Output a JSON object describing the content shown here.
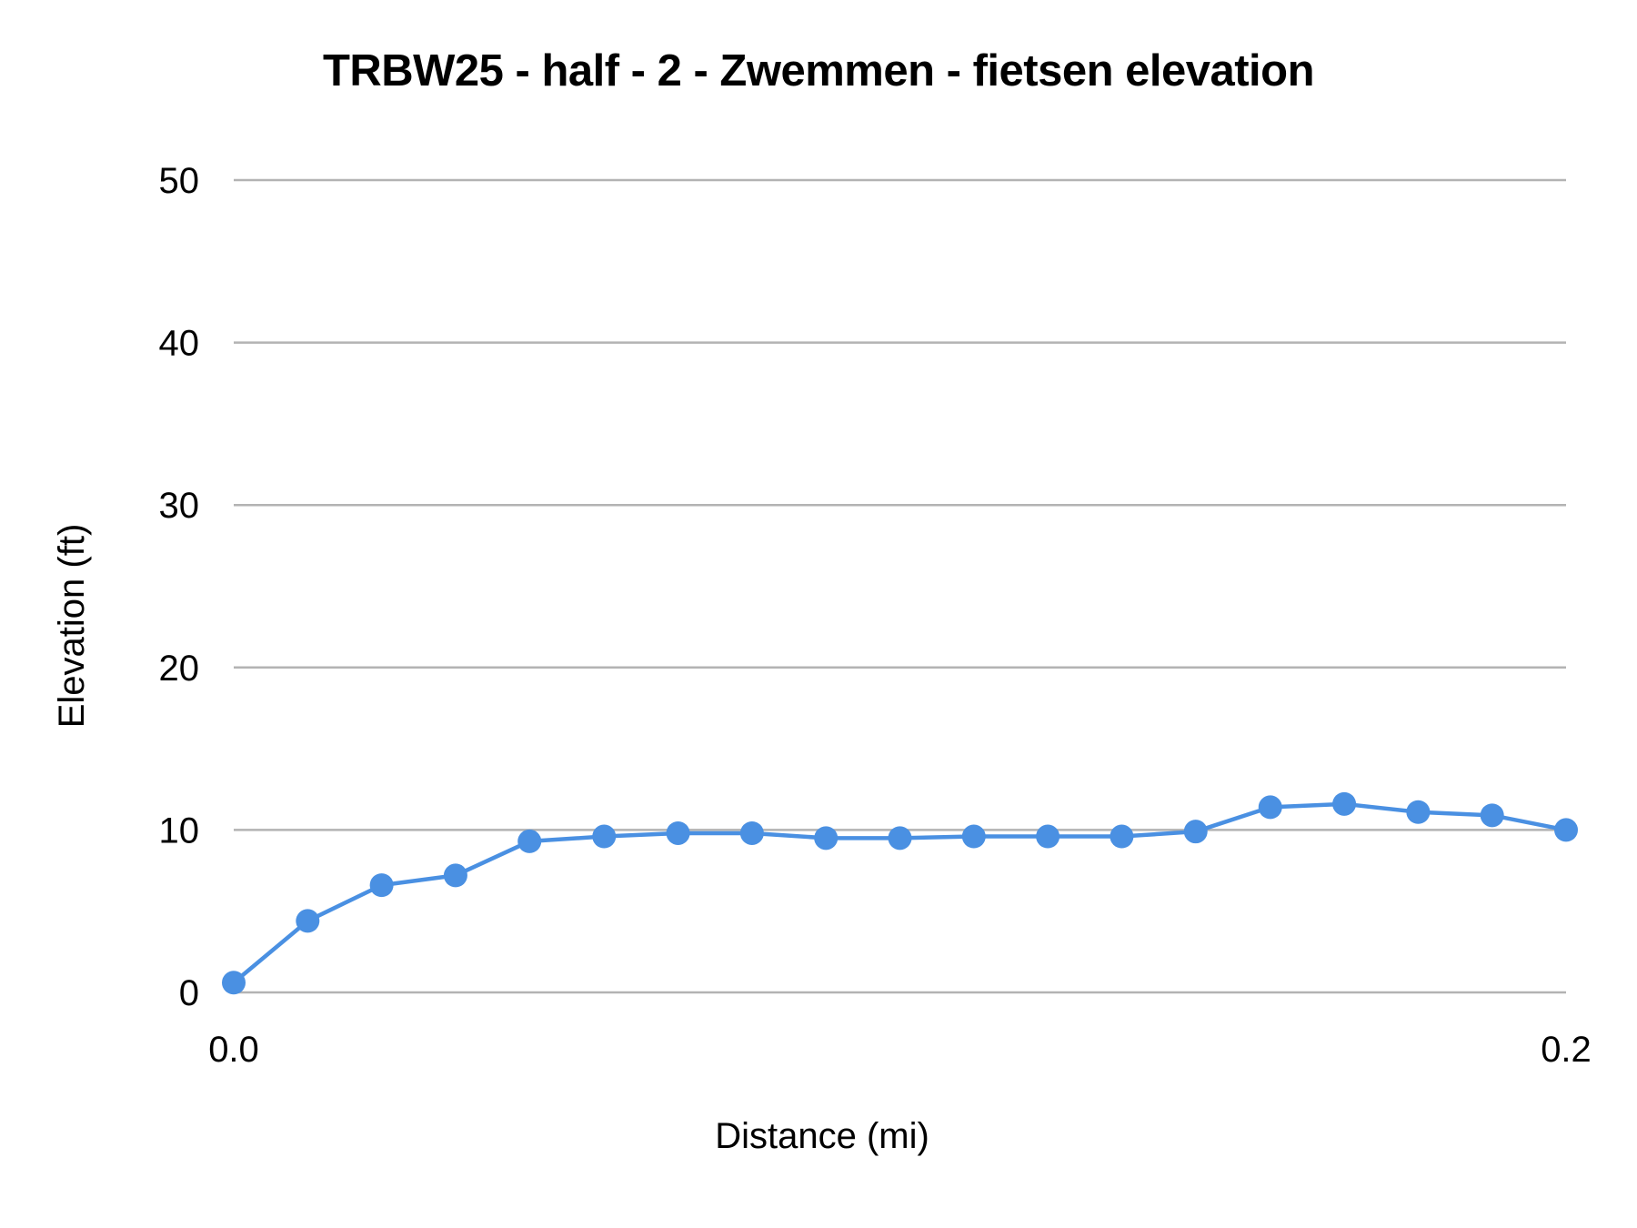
{
  "chart_data": {
    "type": "line",
    "title": "TRBW25 - half - 2 - Zwemmen - fietsen elevation",
    "xlabel": "Distance (mi)",
    "ylabel": "Elevation (ft)",
    "xlim": [
      0.0,
      0.2
    ],
    "ylim": [
      0,
      50
    ],
    "x_tick_labels": [
      "0.0",
      "0.2"
    ],
    "y_tick_labels": [
      "0",
      "10",
      "20",
      "30",
      "40",
      "50"
    ],
    "y_ticks": [
      0,
      10,
      20,
      30,
      40,
      50
    ],
    "grid": true,
    "legend": null,
    "series": [
      {
        "name": "Elevation",
        "color": "#4a90e2",
        "marker": "circle",
        "x": [
          0.0,
          0.0111,
          0.0222,
          0.0333,
          0.0444,
          0.0556,
          0.0667,
          0.0778,
          0.0889,
          0.1,
          0.1111,
          0.1222,
          0.1333,
          0.1444,
          0.1556,
          0.1667,
          0.1778,
          0.1889,
          0.2
        ],
        "values": [
          0.6,
          4.4,
          6.6,
          7.2,
          9.3,
          9.6,
          9.8,
          9.8,
          9.5,
          9.5,
          9.6,
          9.6,
          9.6,
          9.9,
          11.4,
          11.6,
          11.1,
          10.9,
          10.0
        ]
      }
    ]
  },
  "colors": {
    "line": "#4a90e2",
    "grid": "#b3b3b3",
    "text": "#000000",
    "background": "#ffffff"
  }
}
